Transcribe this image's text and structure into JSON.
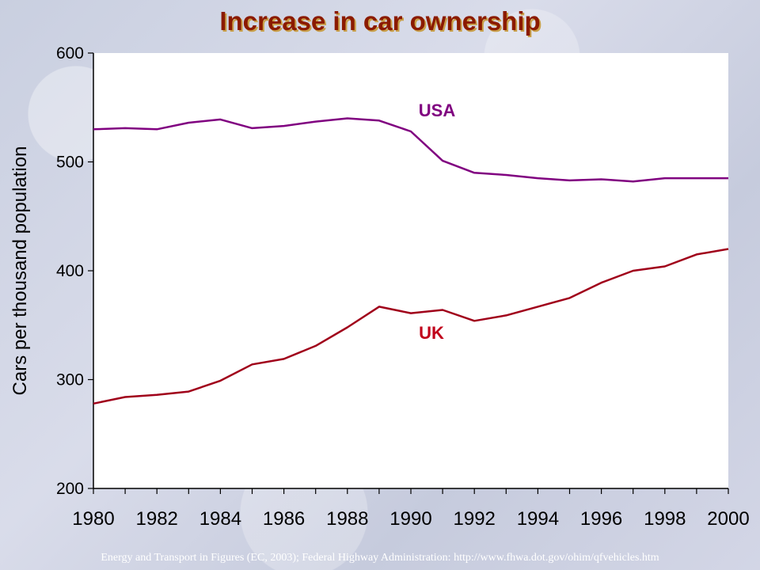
{
  "slide": {
    "title": "Increase in car ownership",
    "source": "Energy and Transport in Figures (EC, 2003); Federal Highway Administration: http://www.fhwa.dot.gov/ohim/qfvehicles.htm"
  },
  "chart_data": {
    "type": "line",
    "title": "Increase in car ownership",
    "xlabel": "",
    "ylabel": "Cars per thousand population",
    "xlim": [
      1980,
      2000
    ],
    "ylim": [
      200,
      600
    ],
    "x_ticks": [
      "1980",
      "1982",
      "1984",
      "1986",
      "1988",
      "1990",
      "1992",
      "1994",
      "1996",
      "1998",
      "2000"
    ],
    "y_ticks": [
      "200",
      "300",
      "400",
      "500",
      "600"
    ],
    "grid": false,
    "legend": "inline labels near lines",
    "x": [
      1980,
      1981,
      1982,
      1983,
      1984,
      1985,
      1986,
      1987,
      1988,
      1989,
      1990,
      1991,
      1992,
      1993,
      1994,
      1995,
      1996,
      1997,
      1998,
      1999,
      2000
    ],
    "series": [
      {
        "name": "USA",
        "color": "#800080",
        "values": [
          530,
          531,
          530,
          536,
          539,
          531,
          533,
          537,
          540,
          538,
          528,
          501,
          490,
          488,
          485,
          483,
          484,
          482,
          485,
          485,
          485
        ]
      },
      {
        "name": "UK",
        "color": "#a0001a",
        "values": [
          278,
          284,
          286,
          289,
          299,
          314,
          319,
          331,
          348,
          367,
          361,
          364,
          354,
          359,
          367,
          375,
          389,
          400,
          404,
          415,
          420
        ]
      }
    ]
  }
}
